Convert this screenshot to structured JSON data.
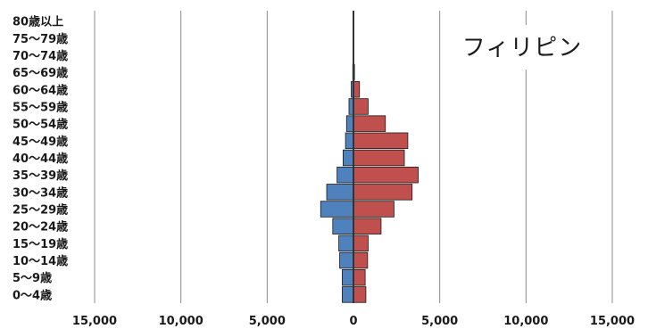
{
  "chart_data": {
    "type": "bar",
    "orientation": "horizontal",
    "title": "フィリピン",
    "categories": [
      "80歳以上",
      "75〜79歳",
      "70〜74歳",
      "65〜69歳",
      "60〜64歳",
      "55〜59歳",
      "50〜54歳",
      "45〜49歳",
      "40〜44歳",
      "35〜39歳",
      "30〜34歳",
      "25〜29歳",
      "20〜24歳",
      "15〜19歳",
      "10〜14歳",
      "5〜9歳",
      "0〜4歳"
    ],
    "series": [
      {
        "side": "left",
        "color": "#4f81bd",
        "values": [
          20,
          20,
          25,
          40,
          130,
          260,
          400,
          460,
          600,
          950,
          1550,
          1900,
          1200,
          850,
          800,
          650,
          650
        ]
      },
      {
        "side": "right",
        "color": "#c0504d",
        "values": [
          20,
          20,
          25,
          60,
          350,
          850,
          1850,
          3150,
          2950,
          3750,
          3400,
          2350,
          1600,
          850,
          820,
          680,
          720
        ]
      }
    ],
    "xlim": [
      -15000,
      15000
    ],
    "xticks": [
      -15000,
      -10000,
      -5000,
      0,
      5000,
      10000,
      15000
    ],
    "xtick_labels": [
      "15,000",
      "10,000",
      "5,000",
      "0",
      "5,000",
      "10,000",
      "15,000"
    ],
    "grid": true
  }
}
